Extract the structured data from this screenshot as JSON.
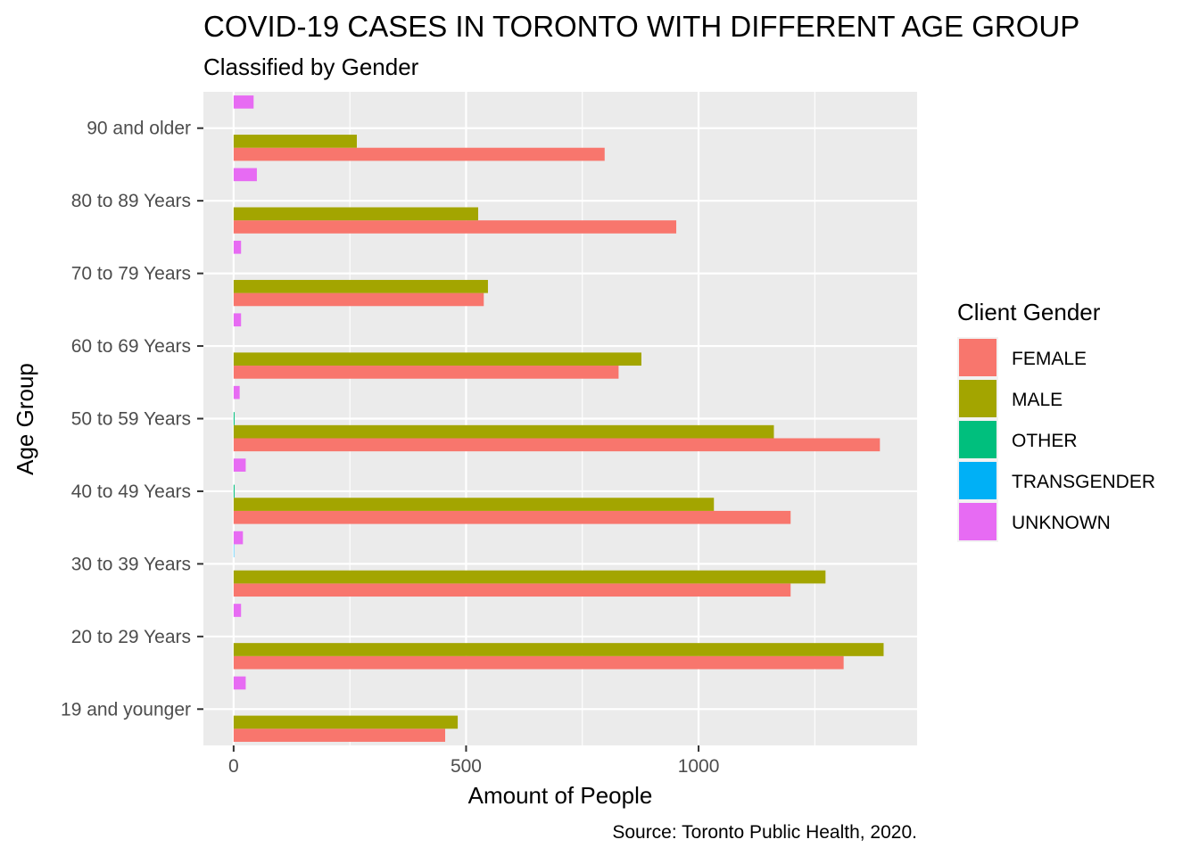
{
  "chart_data": {
    "type": "bar",
    "orientation": "horizontal",
    "title": "COVID-19 CASES IN TORONTO WITH DIFFERENT AGE GROUP",
    "subtitle": "Classified by Gender",
    "xlabel": "Amount of People",
    "ylabel": "Age Group",
    "caption": "Source: Toronto Public Health, 2020.",
    "xlim": [
      -65,
      1470
    ],
    "xticks": [
      0,
      500,
      1000
    ],
    "grid": true,
    "legend": {
      "title": "Client Gender",
      "position": "right"
    },
    "categories": [
      "19 and younger",
      "20 to 29 Years",
      "30 to 39 Years",
      "40 to 49 Years",
      "50 to 59 Years",
      "60 to 69 Years",
      "70 to 79 Years",
      "80 to 89 Years",
      "90 and older"
    ],
    "series": [
      {
        "name": "FEMALE",
        "color": "#F8766D",
        "values": [
          455,
          1312,
          1198,
          1198,
          1390,
          828,
          538,
          952,
          798
        ]
      },
      {
        "name": "MALE",
        "color": "#A3A500",
        "values": [
          482,
          1398,
          1273,
          1033,
          1162,
          877,
          547,
          526,
          265
        ]
      },
      {
        "name": "OTHER",
        "color": "#00BF7D",
        "values": [
          0,
          0,
          0,
          2,
          2,
          0,
          0,
          0,
          0
        ]
      },
      {
        "name": "TRANSGENDER",
        "color": "#00B0F6",
        "values": [
          0,
          0,
          1,
          0,
          0,
          0,
          0,
          0,
          0
        ]
      },
      {
        "name": "UNKNOWN",
        "color": "#E76BF3",
        "values": [
          26,
          16,
          20,
          26,
          13,
          16,
          16,
          50,
          43
        ]
      }
    ]
  }
}
